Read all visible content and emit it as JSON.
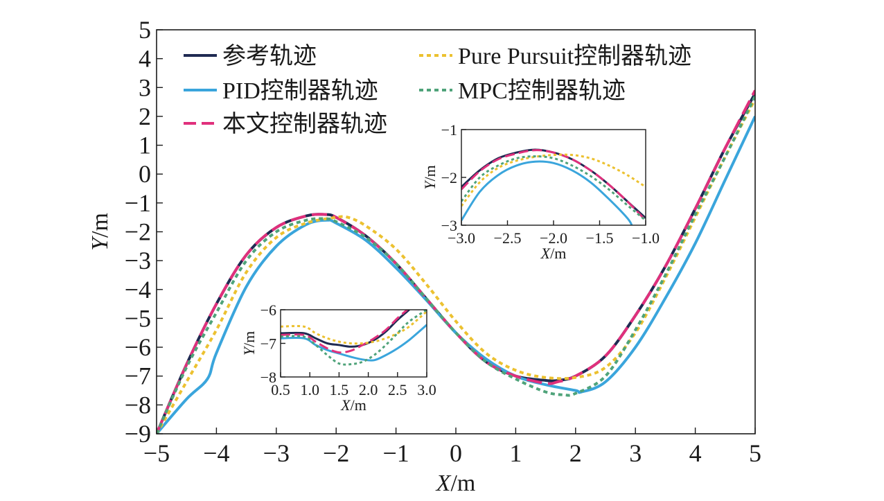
{
  "chart_data": {
    "type": "line",
    "xlabel": "X/m",
    "ylabel": "Y/m",
    "xlim": [
      -5,
      5
    ],
    "ylim": [
      -9,
      5
    ],
    "xticks": [
      "−5",
      "−4",
      "−3",
      "−2",
      "−1",
      "0",
      "1",
      "2",
      "3",
      "4",
      "5"
    ],
    "yticks": [
      "−9",
      "−8",
      "−7",
      "−6",
      "−5",
      "−4",
      "−3",
      "−2",
      "−1",
      "0",
      "1",
      "2",
      "3",
      "4",
      "5"
    ],
    "grid": false,
    "legend_position": "top-left",
    "series": [
      {
        "name": "参考轨迹",
        "color": "#1f2a52",
        "style": "solid",
        "x": [
          -5,
          -4.5,
          -4,
          -3.5,
          -3,
          -2.5,
          -2.2,
          -2,
          -1.5,
          -1,
          -0.5,
          0,
          0.5,
          1,
          1.5,
          1.7,
          2,
          2.5,
          3,
          3.5,
          4,
          4.5,
          5
        ],
        "y": [
          -9,
          -6.6,
          -4.5,
          -2.8,
          -1.85,
          -1.45,
          -1.4,
          -1.5,
          -2.15,
          -3.1,
          -4.3,
          -5.5,
          -6.5,
          -7,
          -7.15,
          -7.15,
          -7,
          -6.3,
          -4.9,
          -3.2,
          -1.2,
          0.9,
          2.8
        ]
      },
      {
        "name": "PID控制器轨迹",
        "color": "#3aa5dc",
        "style": "solid",
        "x": [
          -5,
          -4.5,
          -4.15,
          -4,
          -3.5,
          -3,
          -2.5,
          -2.15,
          -2,
          -1.5,
          -1,
          -0.5,
          0,
          0.5,
          1,
          1.5,
          2,
          2.1,
          2.5,
          3,
          3.5,
          4,
          4.5,
          5
        ],
        "y": [
          -9,
          -7.8,
          -7.1,
          -6.2,
          -3.9,
          -2.5,
          -1.75,
          -1.6,
          -1.7,
          -2.3,
          -3.25,
          -4.35,
          -5.5,
          -6.4,
          -7,
          -7.3,
          -7.5,
          -7.55,
          -7.2,
          -6,
          -4.3,
          -2.4,
          -0.2,
          2
        ]
      },
      {
        "name": "本文控制器轨迹",
        "color": "#e0307c",
        "style": "dashed",
        "x": [
          -5,
          -4.5,
          -4,
          -3.5,
          -3,
          -2.5,
          -2.15,
          -2,
          -1.5,
          -1,
          -0.5,
          0,
          0.5,
          1,
          1.5,
          1.7,
          2,
          2.5,
          3,
          3.5,
          4,
          4.5,
          5
        ],
        "y": [
          -9,
          -6.6,
          -4.5,
          -2.8,
          -1.85,
          -1.45,
          -1.4,
          -1.5,
          -2.15,
          -3.1,
          -4.3,
          -5.5,
          -6.5,
          -7,
          -7.25,
          -7.2,
          -7,
          -6.3,
          -4.9,
          -3.2,
          -1.2,
          0.9,
          2.9
        ]
      },
      {
        "name": "Pure Pursuit控制器轨迹",
        "color": "#ecc130",
        "style": "dotted",
        "x": [
          -5,
          -4.5,
          -4,
          -3.5,
          -3,
          -2.5,
          -2,
          -1.8,
          -1.5,
          -1,
          -0.5,
          0,
          0.5,
          1,
          1.5,
          2,
          2.5,
          3,
          3.5,
          4,
          4.5,
          5
        ],
        "y": [
          -9,
          -7.2,
          -5.4,
          -3.4,
          -2.2,
          -1.7,
          -1.5,
          -1.5,
          -1.8,
          -2.6,
          -3.8,
          -5.1,
          -6.2,
          -6.8,
          -7.05,
          -7.05,
          -6.7,
          -5.5,
          -3.6,
          -1.5,
          0.6,
          2.6
        ]
      },
      {
        "name": "MPC控制器轨迹",
        "color": "#4fa37a",
        "style": "dotted",
        "x": [
          -5,
          -4.5,
          -4,
          -3.5,
          -3,
          -2.5,
          -2.15,
          -2,
          -1.5,
          -1,
          -0.5,
          0,
          0.5,
          1,
          1.5,
          1.8,
          2,
          2.5,
          3,
          3.5,
          4,
          4.5,
          5
        ],
        "y": [
          -9,
          -6.7,
          -4.8,
          -3,
          -2,
          -1.6,
          -1.55,
          -1.65,
          -2.2,
          -3.1,
          -4.3,
          -5.5,
          -6.5,
          -7.1,
          -7.55,
          -7.65,
          -7.6,
          -7,
          -5.4,
          -3.5,
          -1.4,
          0.6,
          2.7
        ]
      }
    ],
    "insets": [
      {
        "xlabel": "X/m",
        "ylabel": "Y/m",
        "xlim": [
          -3,
          -1
        ],
        "ylim": [
          -3,
          -1
        ],
        "xticks": [
          "−3.0",
          "−2.5",
          "−2.0",
          "−1.5",
          "−1.0"
        ],
        "yticks": [
          "−3",
          "−2",
          "−1"
        ],
        "series": [
          {
            "name": "参考轨迹",
            "x": [
              -3,
              -2.8,
              -2.6,
              -2.4,
              -2.2,
              -2,
              -1.8,
              -1.6,
              -1.4,
              -1.2,
              -1
            ],
            "y": [
              -2.2,
              -1.85,
              -1.6,
              -1.48,
              -1.42,
              -1.48,
              -1.62,
              -1.85,
              -2.15,
              -2.5,
              -2.85
            ]
          },
          {
            "name": "PID控制器轨迹",
            "x": [
              -3,
              -2.8,
              -2.6,
              -2.4,
              -2.2,
              -2,
              -1.8,
              -1.6,
              -1.4,
              -1.2,
              -1.15
            ],
            "y": [
              -2.9,
              -2.3,
              -1.95,
              -1.75,
              -1.67,
              -1.7,
              -1.85,
              -2.1,
              -2.45,
              -2.85,
              -3
            ]
          },
          {
            "name": "本文控制器轨迹",
            "x": [
              -3,
              -2.8,
              -2.6,
              -2.4,
              -2.2,
              -2,
              -1.8,
              -1.6,
              -1.4,
              -1.2,
              -1
            ],
            "y": [
              -2.25,
              -1.87,
              -1.62,
              -1.5,
              -1.43,
              -1.48,
              -1.62,
              -1.85,
              -2.15,
              -2.5,
              -2.9
            ]
          },
          {
            "name": "Pure Pursuit控制器轨迹",
            "x": [
              -3,
              -2.8,
              -2.6,
              -2.4,
              -2.2,
              -2,
              -1.8,
              -1.6,
              -1.4,
              -1.2,
              -1
            ],
            "y": [
              -2.6,
              -2.1,
              -1.8,
              -1.65,
              -1.57,
              -1.53,
              -1.53,
              -1.6,
              -1.75,
              -1.95,
              -2.2
            ]
          },
          {
            "name": "MPC控制器轨迹",
            "x": [
              -3,
              -2.8,
              -2.6,
              -2.4,
              -2.2,
              -2,
              -1.8,
              -1.6,
              -1.4,
              -1.2,
              -1
            ],
            "y": [
              -2.5,
              -2.0,
              -1.75,
              -1.6,
              -1.56,
              -1.6,
              -1.75,
              -1.97,
              -2.25,
              -2.58,
              -2.9
            ]
          }
        ]
      },
      {
        "xlabel": "X/m",
        "ylabel": "Y/m",
        "xlim": [
          0.5,
          3
        ],
        "ylim": [
          -8,
          -6
        ],
        "xticks": [
          "0.5",
          "1.0",
          "1.5",
          "2.0",
          "2.5",
          "3.0"
        ],
        "yticks": [
          "−8",
          "−7",
          "−6"
        ],
        "series": [
          {
            "name": "参考轨迹",
            "x": [
              0.5,
              0.9,
              1.1,
              1.3,
              1.5,
              1.7,
              1.9,
              2.1,
              2.3,
              2.5,
              2.7
            ],
            "y": [
              -6.7,
              -6.7,
              -6.85,
              -7.0,
              -7.05,
              -7.1,
              -7.05,
              -6.9,
              -6.65,
              -6.3,
              -6.0
            ]
          },
          {
            "name": "PID控制器轨迹",
            "x": [
              0.5,
              0.9,
              1.1,
              1.3,
              1.5,
              1.7,
              1.9,
              2.1,
              2.3,
              2.5,
              2.7,
              3
            ],
            "y": [
              -6.85,
              -6.85,
              -7.05,
              -7.2,
              -7.3,
              -7.4,
              -7.48,
              -7.5,
              -7.35,
              -7.15,
              -6.9,
              -6.45
            ]
          },
          {
            "name": "本文控制器轨迹",
            "x": [
              0.5,
              0.9,
              1.1,
              1.3,
              1.5,
              1.7,
              1.9,
              2.1,
              2.3,
              2.5,
              2.7
            ],
            "y": [
              -6.75,
              -6.75,
              -6.95,
              -7.15,
              -7.27,
              -7.22,
              -7.05,
              -6.85,
              -6.6,
              -6.25,
              -5.95
            ]
          },
          {
            "name": "Pure Pursuit控制器轨迹",
            "x": [
              0.5,
              0.9,
              1.1,
              1.3,
              1.5,
              1.7,
              1.9,
              2.1,
              2.3,
              2.5,
              2.7,
              3
            ],
            "y": [
              -6.5,
              -6.5,
              -6.7,
              -6.85,
              -6.95,
              -7.0,
              -7.0,
              -6.95,
              -6.85,
              -6.7,
              -6.5,
              -6.05
            ]
          },
          {
            "name": "MPC控制器轨迹",
            "x": [
              0.5,
              0.9,
              1.1,
              1.3,
              1.5,
              1.7,
              1.9,
              2.1,
              2.3,
              2.5,
              2.7,
              3
            ],
            "y": [
              -6.8,
              -6.8,
              -7.05,
              -7.35,
              -7.6,
              -7.62,
              -7.55,
              -7.35,
              -7.05,
              -6.7,
              -6.35,
              -6.0
            ]
          }
        ]
      }
    ]
  }
}
